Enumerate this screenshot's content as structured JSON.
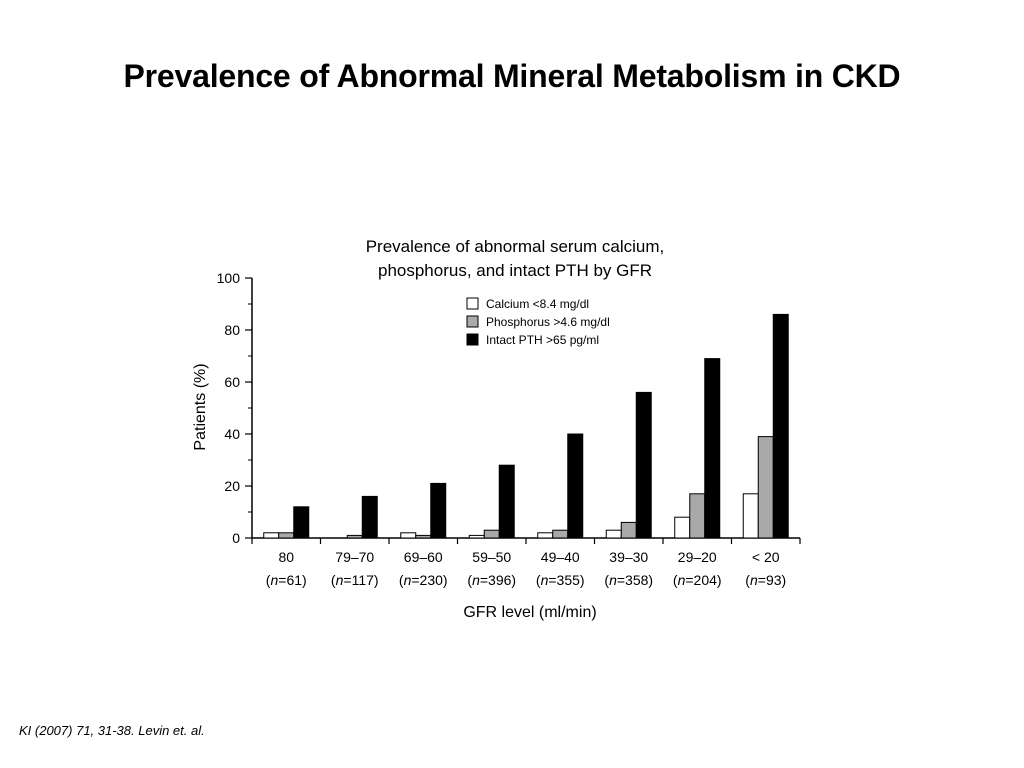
{
  "slide": {
    "title": "Prevalence of Abnormal Mineral Metabolism in CKD",
    "citation": "KI (2007) 71, 31-38. Levin et. al."
  },
  "chart_data": {
    "type": "bar",
    "title_lines": [
      "Prevalence of abnormal serum calcium,",
      "phosphorus, and intact PTH by GFR"
    ],
    "xlabel": "GFR level (ml/min)",
    "ylabel": "Patients (%)",
    "ylim": [
      0,
      100
    ],
    "yticks": [
      0,
      20,
      40,
      60,
      80,
      100
    ],
    "categories": [
      "80",
      "79–70",
      "69–60",
      "59–50",
      "49–40",
      "39–30",
      "29–20",
      "< 20"
    ],
    "n_labels": [
      "61",
      "117",
      "230",
      "396",
      "355",
      "358",
      "204",
      "93"
    ],
    "legend_position": "top-right",
    "grid": false,
    "series": [
      {
        "name": "Calcium <8.4 mg/dl",
        "color": "#ffffff",
        "values": [
          2,
          0,
          2,
          1,
          2,
          3,
          8,
          17
        ]
      },
      {
        "name": "Phosphorus >4.6 mg/dl",
        "color": "#a9a9a9",
        "values": [
          2,
          1,
          1,
          3,
          3,
          6,
          17,
          39
        ]
      },
      {
        "name": "Intact PTH >65 pg/ml",
        "color": "#000000",
        "values": [
          12,
          16,
          21,
          28,
          40,
          56,
          69,
          86
        ]
      }
    ]
  }
}
